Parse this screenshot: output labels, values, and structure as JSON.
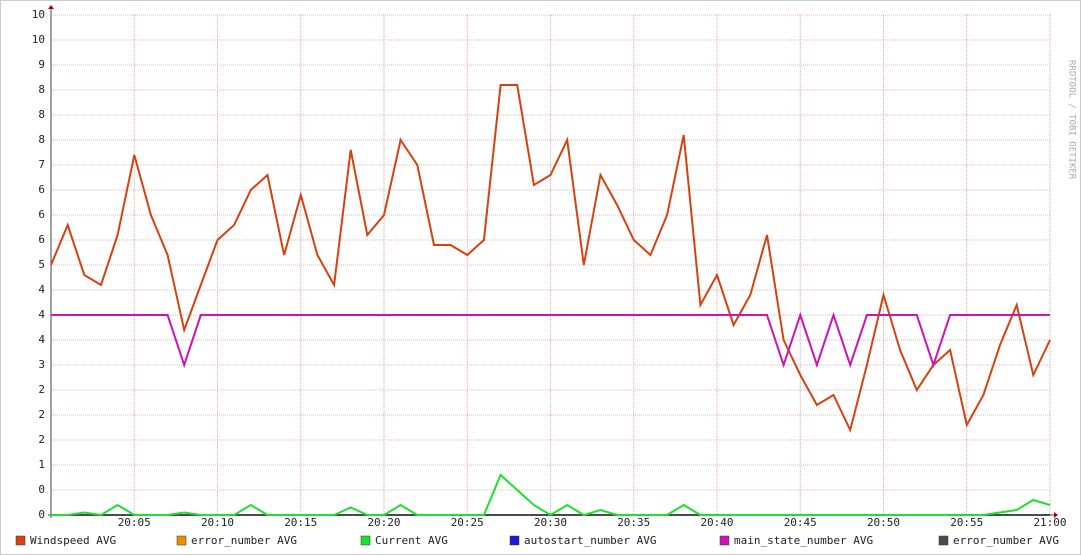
{
  "chart_data": {
    "type": "line",
    "watermark": "RRDTOOL / TOBI OETIKER",
    "x": [
      "20:00",
      "20:01",
      "20:02",
      "20:03",
      "20:04",
      "20:05",
      "20:06",
      "20:07",
      "20:08",
      "20:09",
      "20:10",
      "20:11",
      "20:12",
      "20:13",
      "20:14",
      "20:15",
      "20:16",
      "20:17",
      "20:18",
      "20:19",
      "20:20",
      "20:21",
      "20:22",
      "20:23",
      "20:24",
      "20:25",
      "20:26",
      "20:27",
      "20:28",
      "20:29",
      "20:30",
      "20:31",
      "20:32",
      "20:33",
      "20:34",
      "20:35",
      "20:36",
      "20:37",
      "20:38",
      "20:39",
      "20:40",
      "20:41",
      "20:42",
      "20:43",
      "20:44",
      "20:45",
      "20:46",
      "20:47",
      "20:48",
      "20:49",
      "20:50",
      "20:51",
      "20:52",
      "20:53",
      "20:54",
      "20:55",
      "20:56",
      "20:57",
      "20:58",
      "20:59",
      "21:00"
    ],
    "xlim": [
      "20:00",
      "21:00"
    ],
    "xticks": [
      "20:05",
      "20:10",
      "20:15",
      "20:20",
      "20:25",
      "20:30",
      "20:35",
      "20:40",
      "20:45",
      "20:50",
      "20:55",
      "21:00"
    ],
    "ylim": [
      0,
      10
    ],
    "yticks": [
      0,
      {
        "value": 0.5,
        "label": "0"
      },
      1,
      {
        "value": 1.5,
        "label": "2"
      },
      2,
      {
        "value": 2.5,
        "label": "2"
      },
      3,
      {
        "value": 3.5,
        "label": "4"
      },
      4,
      {
        "value": 4.5,
        "label": "4"
      },
      5,
      {
        "value": 5.5,
        "label": "6"
      },
      6,
      {
        "value": 6.5,
        "label": "6"
      },
      7,
      {
        "value": 7.5,
        "label": "8"
      },
      8,
      {
        "value": 8.5,
        "label": "8"
      },
      9,
      {
        "value": 9.5,
        "label": "10"
      },
      10
    ],
    "grid": true,
    "series": [
      {
        "name": "Windspeed AVG",
        "color": "#d5420f",
        "values": [
          5.0,
          5.8,
          4.8,
          4.6,
          5.6,
          7.2,
          6.0,
          5.2,
          3.7,
          4.6,
          5.5,
          5.8,
          6.5,
          6.8,
          5.2,
          6.4,
          5.2,
          4.6,
          7.3,
          5.6,
          6.0,
          7.5,
          7.0,
          5.4,
          5.4,
          5.2,
          5.5,
          8.6,
          8.6,
          6.6,
          6.8,
          7.5,
          5.0,
          6.8,
          6.2,
          5.5,
          5.2,
          6.0,
          7.6,
          4.2,
          4.8,
          3.8,
          4.4,
          5.6,
          3.5,
          2.8,
          2.2,
          2.4,
          1.7,
          3.0,
          4.4,
          3.3,
          2.5,
          3.0,
          3.3,
          1.8,
          2.4,
          3.4,
          4.2,
          2.8,
          3.5
        ]
      },
      {
        "name": "error_number AVG",
        "color": "#ea8f00",
        "values": [
          0,
          0,
          0,
          0,
          0,
          0,
          0,
          0,
          0,
          0,
          0,
          0,
          0,
          0,
          0,
          0,
          0,
          0,
          0,
          0,
          0,
          0,
          0,
          0,
          0,
          0,
          0,
          0,
          0,
          0,
          0,
          0,
          0,
          0,
          0,
          0,
          0,
          0,
          0,
          0,
          0,
          0,
          0,
          0,
          0,
          0,
          0,
          0,
          0,
          0,
          0,
          0,
          0,
          0,
          0,
          0,
          0,
          0,
          0,
          0,
          0
        ]
      },
      {
        "name": "Current AVG",
        "color": "#1ee02e",
        "values": [
          0,
          0,
          0.05,
          0,
          0.2,
          0,
          0,
          0,
          0.05,
          0,
          0,
          0,
          0.2,
          0,
          0,
          0,
          0,
          0,
          0.15,
          0,
          0,
          0.2,
          0,
          0,
          0,
          0,
          0,
          0.8,
          0.5,
          0.2,
          0,
          0.2,
          0,
          0.1,
          0,
          0,
          0,
          0,
          0.2,
          0,
          0,
          0,
          0,
          0,
          0,
          0,
          0,
          0,
          0,
          0,
          0,
          0,
          0,
          0,
          0,
          0,
          0,
          0.05,
          0.1,
          0.3,
          0.2
        ]
      },
      {
        "name": "autostart_number AVG",
        "color": "#1f16d6",
        "values": [
          0,
          0,
          0,
          0,
          0,
          0,
          0,
          0,
          0,
          0,
          0,
          0,
          0,
          0,
          0,
          0,
          0,
          0,
          0,
          0,
          0,
          0,
          0,
          0,
          0,
          0,
          0,
          0,
          0,
          0,
          0,
          0,
          0,
          0,
          0,
          0,
          0,
          0,
          0,
          0,
          0,
          0,
          0,
          0,
          0,
          0,
          0,
          0,
          0,
          0,
          0,
          0,
          0,
          0,
          0,
          0,
          0,
          0,
          0,
          0,
          0
        ]
      },
      {
        "name": "main_state_number AVG",
        "color": "#cc14b4",
        "values": [
          4,
          4,
          4,
          4,
          4,
          4,
          4,
          4,
          3,
          4,
          4,
          4,
          4,
          4,
          4,
          4,
          4,
          4,
          4,
          4,
          4,
          4,
          4,
          4,
          4,
          4,
          4,
          4,
          4,
          4,
          4,
          4,
          4,
          4,
          4,
          4,
          4,
          4,
          4,
          4,
          4,
          4,
          4,
          4,
          3,
          4,
          3,
          4,
          3,
          4,
          4,
          4,
          4,
          3,
          4,
          4,
          4,
          4,
          4,
          4,
          4
        ]
      },
      {
        "name": "error_number AVG",
        "color": "#4b4b4b",
        "values": [
          0,
          0,
          0,
          0,
          0,
          0,
          0,
          0,
          0,
          0,
          0,
          0,
          0,
          0,
          0,
          0,
          0,
          0,
          0,
          0,
          0,
          0,
          0,
          0,
          0,
          0,
          0,
          0,
          0,
          0,
          0,
          0,
          0,
          0,
          0,
          0,
          0,
          0,
          0,
          0,
          0,
          0,
          0,
          0,
          0,
          0,
          0,
          0,
          0,
          0,
          0,
          0,
          0,
          0,
          0,
          0,
          0,
          0,
          0,
          0,
          0
        ]
      }
    ]
  }
}
